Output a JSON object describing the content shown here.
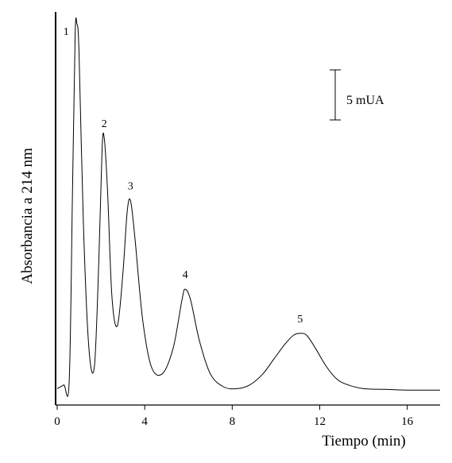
{
  "chart_data": {
    "type": "line",
    "title": "",
    "xlabel": "Tiempo (min)",
    "ylabel": "Absorbancia a 214 nm",
    "xlim": [
      0,
      17.5
    ],
    "ylim": [
      0,
      1
    ],
    "x_ticks": [
      0,
      4,
      8,
      12,
      16
    ],
    "x_tick_labels": [
      "0",
      "4",
      "8",
      "12",
      "16"
    ],
    "grid": false,
    "legend": "none",
    "line_color": "#000000",
    "series": [
      {
        "x": [
          0,
          0.3,
          0.55,
          0.7,
          0.82,
          0.9,
          1.0,
          1.2,
          1.45,
          1.7,
          1.9,
          2.05,
          2.15,
          2.3,
          2.5,
          2.75,
          3.0,
          3.2,
          3.35,
          3.55,
          3.9,
          4.3,
          4.8,
          5.3,
          5.7,
          5.85,
          6.1,
          6.5,
          7.0,
          7.6,
          8.2,
          8.8,
          9.4,
          9.9,
          10.4,
          10.8,
          11.1,
          11.4,
          11.8,
          12.3,
          12.8,
          13.3,
          14.0,
          15.0,
          16.0,
          17.5
        ],
        "y": [
          0.01,
          0.02,
          0.03,
          0.55,
          0.97,
          1.0,
          0.92,
          0.45,
          0.12,
          0.07,
          0.35,
          0.66,
          0.69,
          0.55,
          0.26,
          0.18,
          0.32,
          0.49,
          0.52,
          0.42,
          0.2,
          0.07,
          0.05,
          0.12,
          0.25,
          0.28,
          0.25,
          0.14,
          0.05,
          0.015,
          0.01,
          0.02,
          0.05,
          0.09,
          0.13,
          0.155,
          0.16,
          0.155,
          0.12,
          0.07,
          0.035,
          0.02,
          0.01,
          0.008,
          0.006,
          0.006
        ]
      }
    ],
    "peaks": [
      {
        "label": "1",
        "x": 0.88,
        "y": 1.0
      },
      {
        "label": "2",
        "x": 2.15,
        "y": 0.69
      },
      {
        "label": "3",
        "x": 3.35,
        "y": 0.52
      },
      {
        "label": "4",
        "x": 5.85,
        "y": 0.28
      },
      {
        "label": "5",
        "x": 11.1,
        "y": 0.16
      }
    ],
    "scale_bar": {
      "label": "5 mUA"
    }
  }
}
